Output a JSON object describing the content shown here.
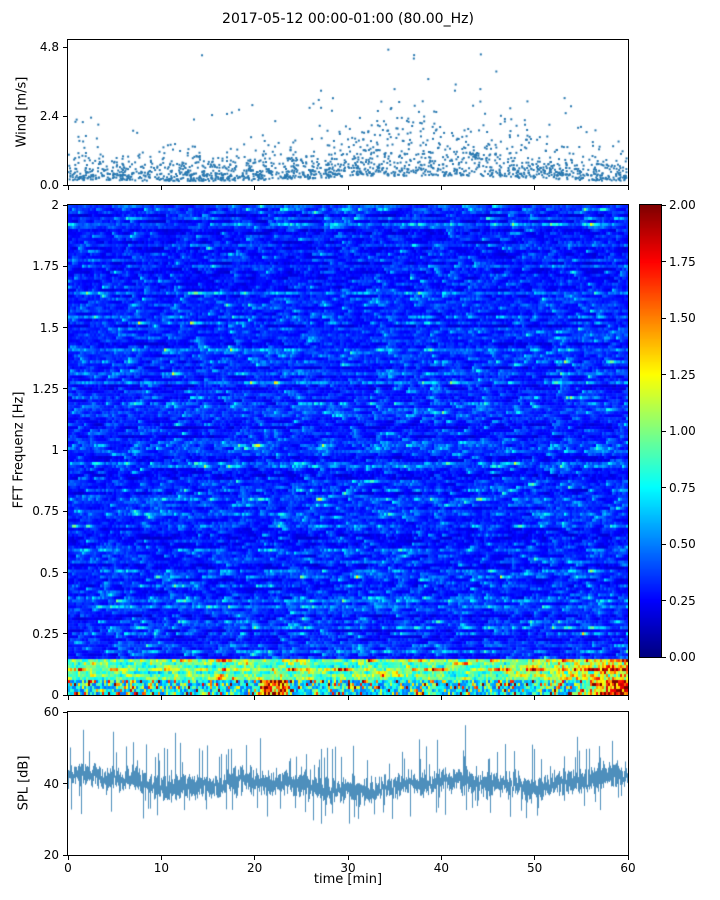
{
  "figure": {
    "title": "2017-05-12 00:00-01:00 (80.00_Hz)",
    "background": "#ffffff"
  },
  "chart_data": [
    {
      "type": "scatter",
      "name": "wind-speed",
      "ylabel": "Wind [m/s]",
      "xlim": [
        0,
        60
      ],
      "ylim": [
        0.0,
        4.8
      ],
      "yticks": [
        "4.8",
        "2.4",
        "0.0"
      ],
      "marker_color": "#2878b0",
      "marker": "dot",
      "n_points_approx": 1750,
      "value_summary": {
        "typical_range": [
          0.2,
          2.4
        ],
        "max": 4.7,
        "pattern": "dense noise band around 1 m/s with gusts up to ~4.7 m/s, gust clusters increasing toward the right half"
      }
    },
    {
      "type": "heatmap",
      "name": "fft-spectrogram",
      "ylabel": "FFT Frequenz [Hz]",
      "xlim": [
        0,
        60
      ],
      "ylim": [
        0,
        2
      ],
      "yticks": [
        "2",
        "1.75",
        "1.5",
        "1.25",
        "1",
        "0.75",
        "0.5",
        "0.25",
        "0"
      ],
      "colormap": "jet",
      "colorbar": {
        "vmin": 0.0,
        "vmax": 2.0,
        "ticks": [
          "2.00",
          "1.75",
          "1.50",
          "1.25",
          "1.00",
          "0.75",
          "0.50",
          "0.25",
          "0.00"
        ]
      },
      "value_summary": {
        "background_mean": 0.3,
        "streaks": "horizontal cyan/green streaks scattered across all frequencies",
        "low_frequency_band": "bright green-yellow band below ~0.1 Hz, strongest after 50 min",
        "hotspot": "orange/red values up to 2.0 near 0 Hz at 55-60 min and ~22 min"
      }
    },
    {
      "type": "line",
      "name": "spl",
      "ylabel": "SPL [dB]",
      "xlabel": "time [min]",
      "xlim": [
        0,
        60
      ],
      "ylim": [
        20,
        60
      ],
      "yticks": [
        "60",
        "40",
        "20"
      ],
      "xticks": [
        "0",
        "10",
        "20",
        "30",
        "40",
        "50",
        "60"
      ],
      "line_color": "#4489b8",
      "value_summary": {
        "mean": 40,
        "band": [
          33,
          48
        ],
        "spikes_up_to": 57,
        "dips_down_to": 27,
        "pattern": "dense noisy band around 40 dB over the full hour"
      }
    }
  ]
}
